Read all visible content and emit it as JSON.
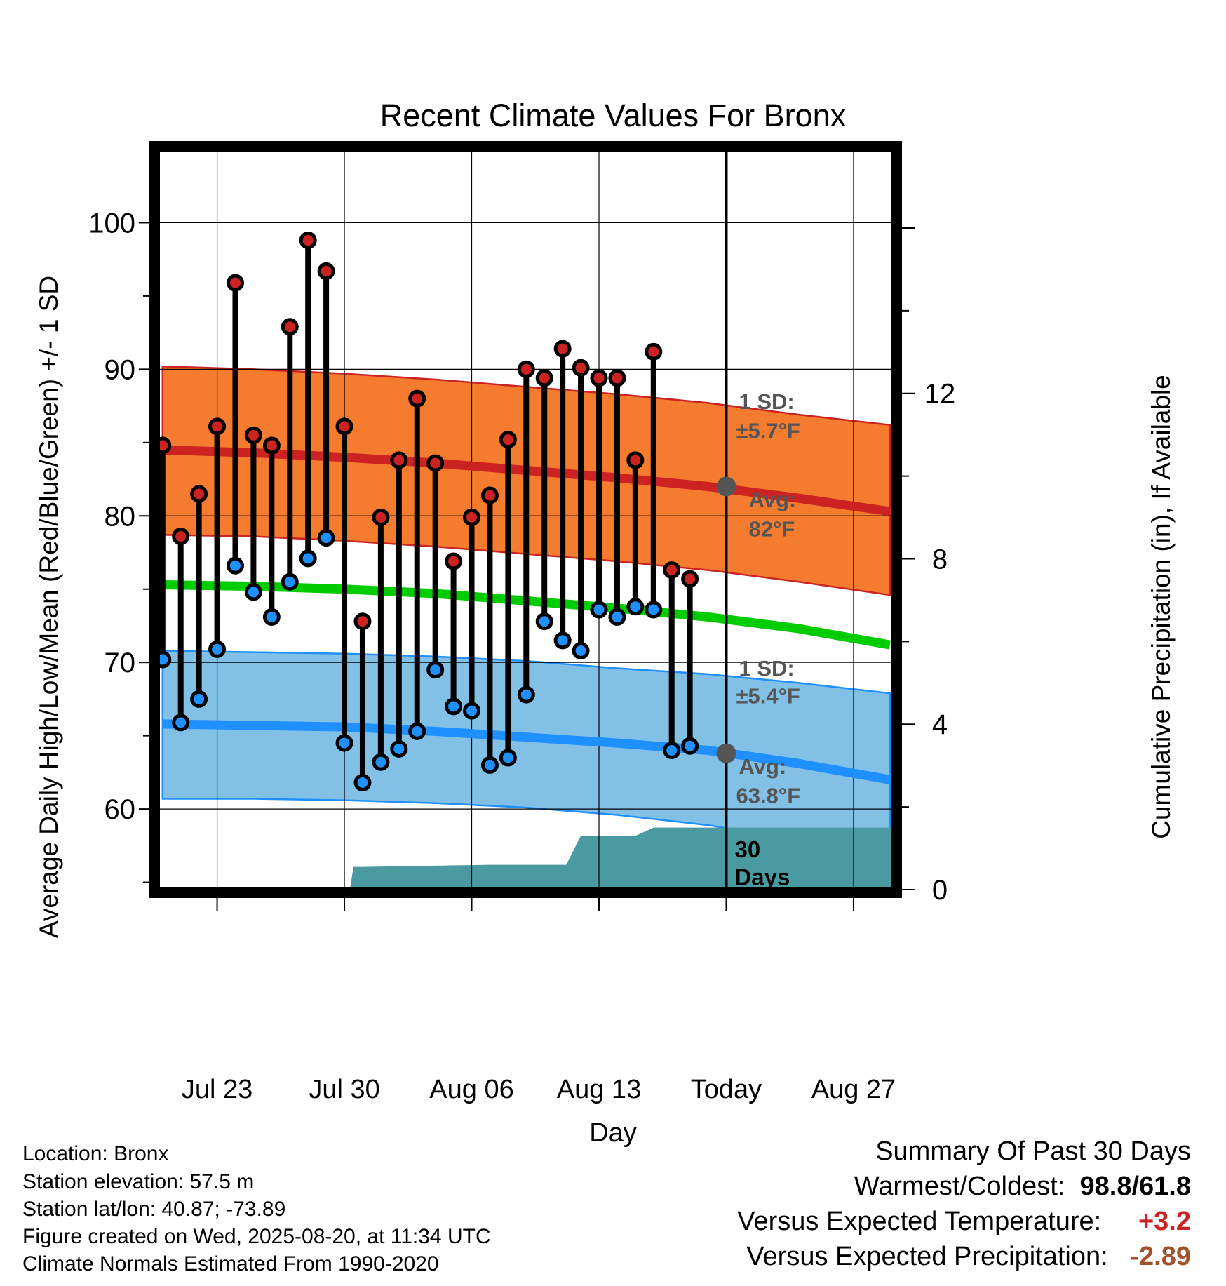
{
  "chart_data": {
    "type": "line",
    "title": "Recent Climate Values For Bronx",
    "xlabel": "Day",
    "ylabel": "Average Daily High/Low/Mean (Red/Blue/Green) +/- 1 SD",
    "y2label": "Cumulative Precipitation (in), If Available",
    "ylim": [
      54.5,
      105
    ],
    "y2lim": [
      0,
      17.9
    ],
    "y_ticks": [
      "60",
      "70",
      "80",
      "90",
      "100"
    ],
    "y2_ticks": [
      "0",
      "4",
      "8",
      "12"
    ],
    "x_ticks": [
      "Jul 23",
      "Jul 30",
      "Aug 06",
      "Aug 13",
      "Today",
      "Aug 27"
    ],
    "x_tick_days": [
      23,
      30,
      37,
      44,
      51,
      58
    ],
    "x_range_days": [
      19.7,
      60.2
    ],
    "today_day": 51,
    "grid": true,
    "days": [
      20,
      21,
      22,
      23,
      24,
      25,
      26,
      27,
      28,
      29,
      30,
      31,
      32,
      33,
      34,
      35,
      36,
      37,
      38,
      39,
      40,
      41,
      42,
      43,
      44,
      45,
      46,
      47,
      48,
      49
    ],
    "series": [
      {
        "name": "High",
        "color": "#cc2222",
        "values": [
          84.8,
          78.6,
          81.5,
          86.1,
          95.9,
          85.5,
          84.8,
          92.9,
          98.8,
          96.7,
          86.1,
          72.8,
          79.9,
          83.8,
          88.0,
          83.6,
          76.9,
          79.9,
          81.4,
          85.2,
          90.0,
          89.4,
          91.4,
          90.1,
          89.4,
          89.4,
          83.8,
          91.2,
          76.3,
          75.7
        ]
      },
      {
        "name": "Low",
        "color": "#1e90ff",
        "values": [
          70.2,
          65.9,
          67.5,
          70.9,
          76.6,
          74.8,
          73.1,
          75.5,
          77.1,
          78.5,
          64.5,
          61.8,
          63.2,
          64.1,
          65.3,
          69.5,
          67.0,
          66.7,
          63.0,
          63.5,
          67.8,
          72.8,
          71.5,
          70.8,
          73.6,
          73.1,
          73.8,
          73.6,
          64.0,
          64.3
        ]
      }
    ],
    "normals": {
      "days": [
        20,
        25,
        30,
        35,
        40,
        45,
        50,
        55,
        60
      ],
      "high_avg": [
        84.5,
        84.3,
        84.0,
        83.6,
        83.1,
        82.6,
        82.0,
        81.2,
        80.3
      ],
      "high_upper": [
        90.2,
        90.0,
        89.7,
        89.3,
        88.8,
        88.3,
        87.7,
        86.9,
        86.2
      ],
      "high_lower": [
        78.7,
        78.6,
        78.3,
        77.9,
        77.4,
        76.9,
        76.3,
        75.5,
        74.6
      ],
      "mean_avg": [
        75.3,
        75.2,
        75.0,
        74.7,
        74.2,
        73.7,
        73.1,
        72.3,
        71.2
      ],
      "low_avg": [
        65.8,
        65.7,
        65.6,
        65.3,
        64.9,
        64.5,
        64.0,
        63.1,
        62.0
      ],
      "low_upper": [
        70.8,
        70.7,
        70.6,
        70.4,
        70.1,
        69.6,
        69.2,
        68.6,
        67.9
      ],
      "low_lower": [
        60.7,
        60.7,
        60.6,
        60.4,
        60.1,
        59.6,
        58.9,
        57.9,
        56.6
      ]
    },
    "precip_cumulative": {
      "days": [
        30.3,
        30.5,
        31.0,
        38.0,
        42.2,
        43.0,
        46.0,
        47.0,
        51.0,
        60.2
      ],
      "values": [
        0,
        0.55,
        0.55,
        0.6,
        0.6,
        1.3,
        1.3,
        1.5,
        1.5,
        1.5
      ]
    },
    "colors": {
      "high_band": "#f57b2e",
      "high_line": "#cc2222",
      "low_band": "#82c0e6",
      "low_line": "#1e90ff",
      "mean_line": "#00cc00",
      "precip": "#4a9ba1",
      "annotation": "#555555"
    },
    "annotations": {
      "high_sd_label": "1 SD:",
      "high_sd_value": "±5.7°F",
      "high_avg_label": "Avg:",
      "high_avg_value": "82°F",
      "low_sd_label": "1 SD:",
      "low_sd_value": "±5.4°F",
      "low_avg_label": "Avg:",
      "low_avg_value": "63.8°F",
      "today_high_avg": 82,
      "today_low_avg": 63.8,
      "window_label_1": "30",
      "window_label_2": "Days"
    }
  },
  "info": {
    "location": "Location: Bronx",
    "elevation": "Station elevation: 57.5 m",
    "latlon": "Station lat/lon: 40.87; -73.89",
    "created": "Figure created on Wed, 2025-08-20, at 11:34 UTC",
    "normals": "Climate Normals Estimated From 1990-2020"
  },
  "summary": {
    "heading": "Summary Of Past 30 Days",
    "warm_cold_label": "Warmest/Coldest:",
    "warmest": "98.8",
    "coldest": "61.8",
    "temp_label": "Versus Expected Temperature:",
    "temp_value": "+3.2",
    "temp_color": "#cc2222",
    "precip_label": "Versus Expected Precipitation:",
    "precip_value": "-2.89",
    "precip_color": "#a0522d"
  }
}
